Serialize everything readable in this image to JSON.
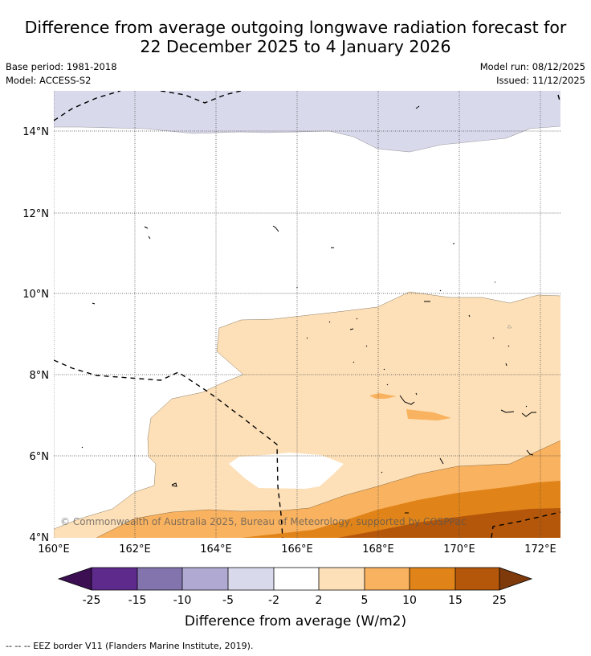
{
  "title_line1": "Difference from average outgoing longwave radiation forecast for",
  "title_line2": "22 December 2025 to 4 January 2026",
  "base_period": "Base period: 1981-2018",
  "model": "Model: ACCESS-S2",
  "model_run": "Model run: 08/12/2025",
  "issued": "Issued: 11/12/2025",
  "lat_labels": [
    "14°N",
    "12°N",
    "10°N",
    "8°N",
    "6°N",
    "4°N"
  ],
  "lon_labels": [
    "160°E",
    "162°E",
    "164°E",
    "166°E",
    "168°E",
    "170°E",
    "172°E"
  ],
  "copyright": "© Commonwealth of Australia 2025, Bureau of Meteorology, supported by COSPPac",
  "colorbar": {
    "title": "Difference from average (W/m2)",
    "tick_labels": [
      "-25",
      "-15",
      "-10",
      "-5",
      "-2",
      "2",
      "5",
      "10",
      "15",
      "25"
    ],
    "colors": {
      "below_min": "#3b0f52",
      "c_m25_m15": "#5e2a8c",
      "c_m15_m10": "#8474ae",
      "c_m10_m5": "#b0a9d2",
      "c_m5_m2": "#d9d9ec",
      "c_m2_2": "#ffffff",
      "c_2_5": "#fde0b8",
      "c_5_10": "#f9b25f",
      "c_10_15": "#e08419",
      "c_15_25": "#b4570a",
      "above_max": "#7e3a0b"
    }
  },
  "footnote": "--  --  -- EEZ border V11 (Flanders Marine Institute, 2019)."
}
